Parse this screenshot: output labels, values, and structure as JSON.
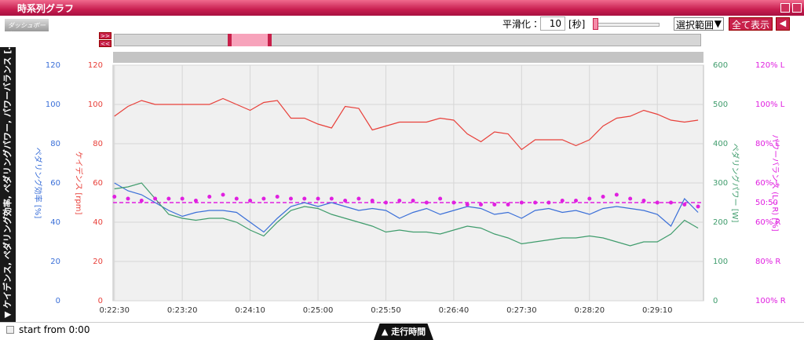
{
  "window": {
    "title": "時系列グラフ",
    "logo": "ダッシュボード"
  },
  "toolbar": {
    "smoothing_label": "平滑化：",
    "smoothing_value": "10",
    "smoothing_unit": "[秒]",
    "range_select": "選択範囲",
    "show_all": "全て表示"
  },
  "side_panel": "▼ ケイデンス, ペダリング効率, ペダリングパワー, パワーバランス [...",
  "footer": {
    "start_from": "start from 0:00",
    "x_axis_tab": "▲ 走行時間"
  },
  "chart_data": {
    "type": "line",
    "x": [
      1350,
      1360,
      1370,
      1380,
      1390,
      1400,
      1410,
      1420,
      1430,
      1440,
      1450,
      1460,
      1470,
      1480,
      1490,
      1500,
      1510,
      1520,
      1530,
      1540,
      1550,
      1560,
      1570,
      1580,
      1590,
      1600,
      1610,
      1620,
      1630,
      1640,
      1650,
      1660,
      1670,
      1680,
      1690,
      1700,
      1710,
      1720,
      1730,
      1740,
      1750,
      1760,
      1770,
      1780
    ],
    "xlim": [
      1349,
      1784
    ],
    "xticks": [
      {
        "value": 1350,
        "label": "0:22:30"
      },
      {
        "value": 1400,
        "label": "0:23:20"
      },
      {
        "value": 1450,
        "label": "0:24:10"
      },
      {
        "value": 1500,
        "label": "0:25:00"
      },
      {
        "value": 1550,
        "label": "0:25:50"
      },
      {
        "value": 1600,
        "label": "0:26:40"
      },
      {
        "value": 1650,
        "label": "0:27:30"
      },
      {
        "value": 1700,
        "label": "0:28:20"
      },
      {
        "value": 1750,
        "label": "0:29:10"
      }
    ],
    "grid": true,
    "axes": [
      {
        "label": "ペダリング効率 [%]",
        "color": "#3a6fd8",
        "lim": [
          0,
          120
        ],
        "ticks": [
          0,
          20,
          40,
          60,
          80,
          100,
          120
        ]
      },
      {
        "label": "ケイデンス [rpm]",
        "color": "#e8403a",
        "lim": [
          0,
          120
        ],
        "ticks": [
          0,
          20,
          40,
          60,
          80,
          100,
          120
        ]
      },
      {
        "label": "ペダリングパワー [W]",
        "color": "#3f9c6c",
        "lim": [
          0,
          600
        ],
        "ticks": [
          0,
          100,
          200,
          300,
          400,
          500,
          600
        ]
      },
      {
        "label": "パワーバランス (L : R) [%]",
        "color": "#e020e0",
        "lim": [
          0,
          120
        ],
        "ticks": [
          {
            "value": 0,
            "label": "100% R"
          },
          {
            "value": 20,
            "label": "80% R"
          },
          {
            "value": 40,
            "label": "60% R"
          },
          {
            "value": 50,
            "label": "50:50"
          },
          {
            "value": 60,
            "label": "60% L"
          },
          {
            "value": 80,
            "label": "80% L"
          },
          {
            "value": 100,
            "label": "100% L"
          },
          {
            "value": 120,
            "label": "120% L"
          }
        ]
      }
    ],
    "series": [
      {
        "color": "#e8403a",
        "axis": 1,
        "values": [
          94,
          99,
          102,
          100,
          100,
          100,
          100,
          100,
          103,
          100,
          97,
          101,
          102,
          93,
          93,
          90,
          88,
          99,
          98,
          87,
          89,
          91,
          91,
          91,
          93,
          92,
          85,
          81,
          86,
          85,
          77,
          82,
          82,
          82,
          79,
          82,
          89,
          93,
          94,
          97,
          95,
          92,
          91,
          92
        ]
      },
      {
        "color": "#3a6fd8",
        "axis": 0,
        "values": [
          60,
          56,
          54,
          50,
          46,
          43,
          45,
          46,
          46,
          45,
          40,
          35,
          42,
          48,
          50,
          48,
          50,
          48,
          46,
          47,
          46,
          42,
          45,
          47,
          44,
          46,
          48,
          47,
          44,
          45,
          42,
          46,
          47,
          45,
          46,
          44,
          47,
          48,
          47,
          46,
          44,
          38,
          52,
          45
        ]
      },
      {
        "color": "#3f9c6c",
        "axis": 2,
        "values": [
          285,
          290,
          300,
          260,
          220,
          210,
          205,
          210,
          210,
          200,
          180,
          165,
          200,
          230,
          240,
          235,
          220,
          210,
          200,
          190,
          175,
          180,
          175,
          175,
          170,
          180,
          190,
          185,
          170,
          160,
          145,
          150,
          155,
          160,
          160,
          165,
          160,
          150,
          140,
          150,
          150,
          170,
          205,
          185
        ]
      },
      {
        "color": "#e020e0",
        "axis": 3,
        "marker": "dot",
        "values": [
          53,
          52,
          51,
          52,
          52,
          52,
          51,
          53,
          54,
          52,
          51,
          52,
          53,
          52,
          52,
          52,
          52,
          51,
          52,
          51,
          50,
          51,
          51,
          50,
          52,
          50,
          49,
          49,
          49,
          49,
          50,
          50,
          50,
          51,
          51,
          52,
          53,
          54,
          52,
          51,
          50,
          50,
          49,
          48
        ]
      }
    ],
    "reference_line": {
      "axis": 3,
      "value": 50,
      "color": "#e020e0"
    }
  }
}
